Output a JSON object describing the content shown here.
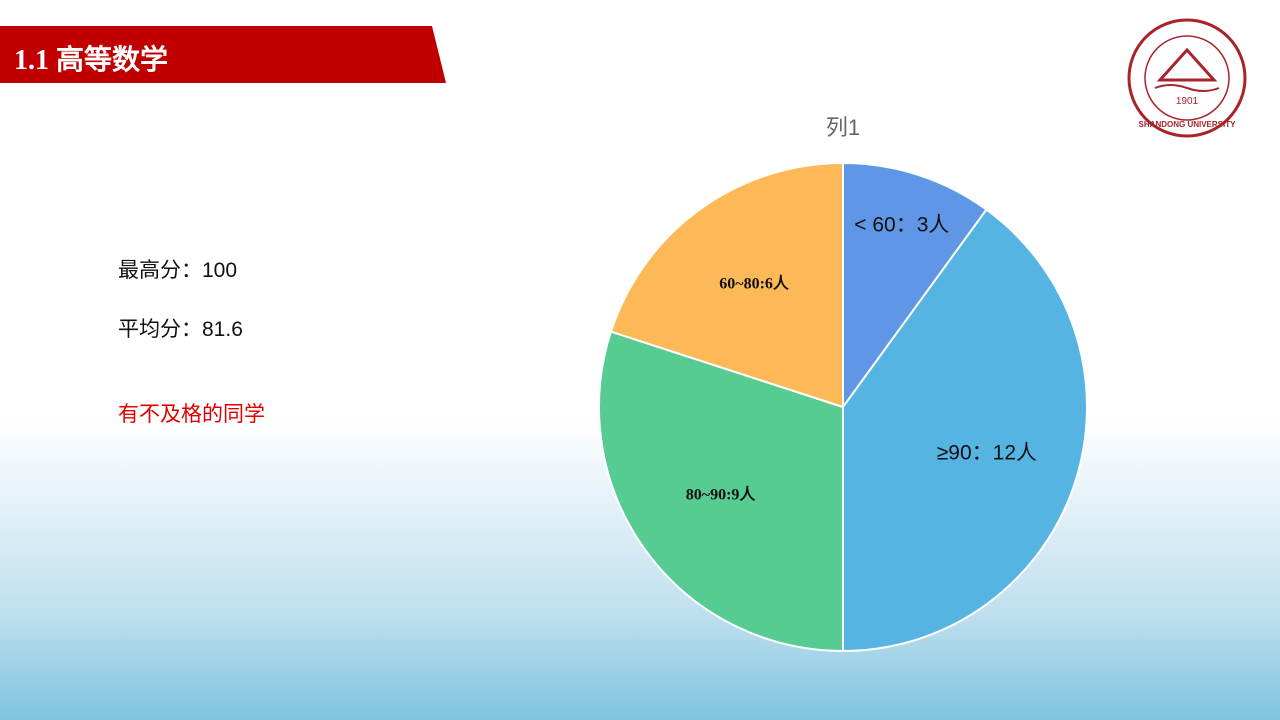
{
  "header": {
    "title": "1.1  高等数学"
  },
  "notes": [
    "最高分：100",
    "平均分：81.6",
    "有不及格的同学"
  ],
  "logo": {
    "name": "SHANDONG UNIVERSITY",
    "year": "1901"
  },
  "chart_data": {
    "type": "pie",
    "title": "列1",
    "values": [
      3,
      12,
      9,
      6
    ],
    "value_labels": [
      "< 60：3人",
      "≥90：12人",
      "80~90:9人",
      "60~80:6人"
    ],
    "colors": [
      "#5f97e6",
      "#56b4e3",
      "#56cc93",
      "#fdb858"
    ]
  }
}
